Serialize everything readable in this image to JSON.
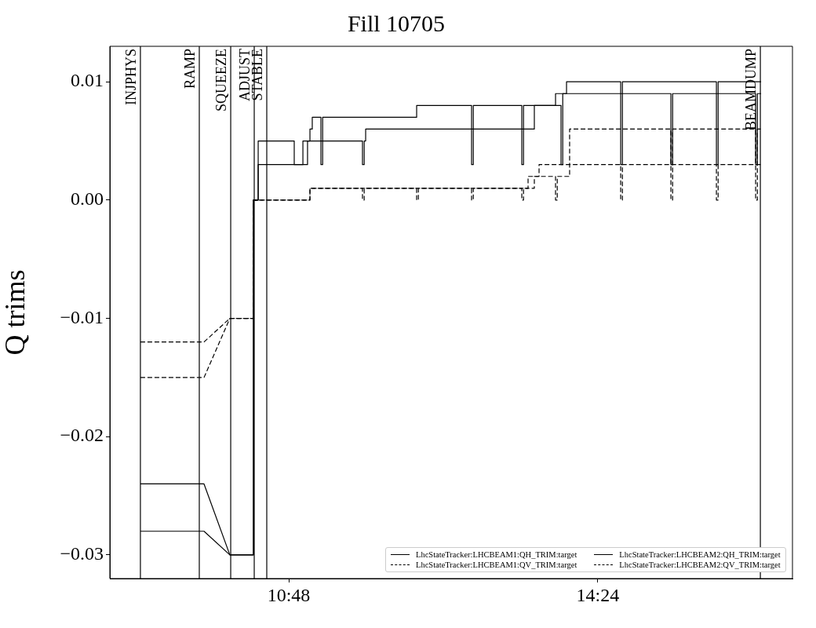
{
  "chart_data": {
    "type": "line",
    "title": "Fill 10705",
    "ylabel": "Q trims",
    "xlim": [
      8.716,
      16.668
    ],
    "xticks": [
      {
        "value": 10.8,
        "label": "10:48"
      },
      {
        "value": 14.4,
        "label": "14:24"
      }
    ],
    "ylim": [
      -0.032,
      0.013
    ],
    "yticks": [
      {
        "value": -0.03,
        "label": "−0.03"
      },
      {
        "value": -0.02,
        "label": "−0.02"
      },
      {
        "value": -0.01,
        "label": "−0.01"
      },
      {
        "value": 0,
        "label": "0.00"
      },
      {
        "value": 0.01,
        "label": "0.01"
      }
    ],
    "grid": false,
    "legend": "bottom right",
    "marker": "none",
    "ref_lines": [
      {
        "axis": "x",
        "value": 9.072,
        "label": "INJPHYS"
      },
      {
        "axis": "x",
        "value": 9.758,
        "label": "RAMP"
      },
      {
        "axis": "x",
        "value": 10.124,
        "label": "SQUEEZE"
      },
      {
        "axis": "x",
        "value": 10.398,
        "label": "ADJUST"
      },
      {
        "axis": "x",
        "value": 10.544,
        "label": "STABLE"
      },
      {
        "axis": "x",
        "value": 16.294,
        "label": "BEAMDUMP"
      }
    ],
    "series": [
      {
        "name": "LhcStateTracker:LHCBEAM1:QH_TRIM:target",
        "color": "#000000",
        "line_style": "solid",
        "x": [
          9.072,
          9.813,
          10.114,
          10.389,
          10.389,
          10.444,
          10.444,
          10.864,
          10.864,
          10.965,
          10.965,
          11.659,
          11.659,
          11.679,
          11.679,
          11.696,
          11.696,
          13.661,
          13.661,
          13.972,
          13.972,
          13.992,
          13.992,
          15.252,
          15.252,
          15.272,
          15.272,
          16.239,
          16.239,
          16.259,
          16.259,
          16.303
        ],
        "values": [
          -0.024,
          -0.024,
          -0.03,
          -0.03,
          0,
          0,
          0.005,
          0.005,
          0.003,
          0.003,
          0.005,
          0.005,
          0.003,
          0.003,
          0.005,
          0.005,
          0.006,
          0.006,
          0.008,
          0.008,
          0.003,
          0.003,
          0.009,
          0.009,
          0.003,
          0.003,
          0.009,
          0.009,
          0.003,
          0.003,
          0.009,
          0.009
        ]
      },
      {
        "name": "LhcStateTracker:LHCBEAM1:QV_TRIM:target",
        "color": "#000000",
        "line_style": "dashed",
        "x": [
          9.072,
          9.813,
          10.114,
          10.389,
          10.389,
          11.047,
          11.047,
          11.659,
          11.659,
          11.679,
          11.679,
          12.93,
          12.93,
          12.95,
          12.95,
          13.588,
          13.588,
          13.716,
          13.716,
          14.667,
          14.667,
          14.687,
          14.687,
          15.782,
          15.782,
          15.802,
          15.802,
          16.303
        ],
        "values": [
          -0.012,
          -0.012,
          -0.01,
          -0.01,
          0,
          0,
          0.001,
          0.001,
          0,
          0,
          0.001,
          0.001,
          0,
          0,
          0.001,
          0.001,
          0.002,
          0.002,
          0.003,
          0.003,
          0,
          0,
          0.003,
          0.003,
          0,
          0,
          0.003,
          0.003
        ]
      },
      {
        "name": "LhcStateTracker:LHCBEAM2:QH_TRIM:target",
        "color": "#000000",
        "line_style": "solid",
        "x": [
          9.072,
          9.813,
          10.114,
          10.389,
          10.389,
          10.444,
          10.444,
          11.019,
          11.019,
          11.047,
          11.047,
          11.074,
          11.074,
          11.175,
          11.175,
          11.195,
          11.195,
          12.29,
          12.29,
          12.93,
          12.93,
          12.95,
          12.95,
          13.515,
          13.515,
          13.535,
          13.535,
          13.908,
          13.908,
          14.036,
          14.036,
          14.667,
          14.667,
          14.687,
          14.687,
          15.782,
          15.782,
          15.802,
          15.802,
          16.303
        ],
        "values": [
          -0.028,
          -0.028,
          -0.03,
          -0.03,
          0,
          0,
          0.003,
          0.003,
          0.005,
          0.005,
          0.006,
          0.006,
          0.007,
          0.007,
          0.003,
          0.003,
          0.007,
          0.007,
          0.008,
          0.008,
          0.003,
          0.003,
          0.008,
          0.008,
          0.003,
          0.003,
          0.008,
          0.008,
          0.009,
          0.009,
          0.01,
          0.01,
          0.003,
          0.003,
          0.01,
          0.01,
          0.003,
          0.003,
          0.01,
          0.01
        ]
      },
      {
        "name": "LhcStateTracker:LHCBEAM2:QV_TRIM:target",
        "color": "#000000",
        "line_style": "dashed",
        "x": [
          9.072,
          9.813,
          10.114,
          10.389,
          10.389,
          11.047,
          11.047,
          12.29,
          12.29,
          12.31,
          12.31,
          13.515,
          13.515,
          13.535,
          13.535,
          13.661,
          13.661,
          13.908,
          13.908,
          13.928,
          13.928,
          14.072,
          14.072,
          15.252,
          15.252,
          15.272,
          15.272,
          16.239,
          16.239,
          16.259,
          16.259,
          16.303
        ],
        "values": [
          -0.015,
          -0.015,
          -0.01,
          -0.01,
          0,
          0,
          0.001,
          0.001,
          0,
          0,
          0.001,
          0.001,
          0,
          0,
          0.001,
          0.001,
          0.002,
          0.002,
          0,
          0,
          0.002,
          0.002,
          0.006,
          0.006,
          0,
          0,
          0.006,
          0.006,
          0,
          0,
          0.006,
          0.006
        ]
      }
    ]
  }
}
